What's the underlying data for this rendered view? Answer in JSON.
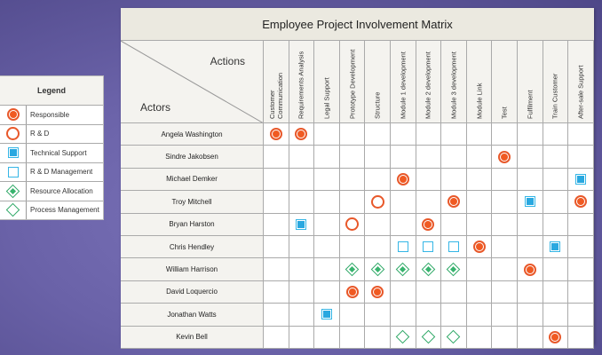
{
  "legend": {
    "title": "Legend",
    "items": [
      {
        "icon": "responsible",
        "label": "Responsible"
      },
      {
        "icon": "rd",
        "label": "R & D"
      },
      {
        "icon": "tech",
        "label": "Technical Support"
      },
      {
        "icon": "rdm",
        "label": "R & D Management"
      },
      {
        "icon": "res",
        "label": "Resource Allocation"
      },
      {
        "icon": "proc",
        "label": "Process Management"
      }
    ]
  },
  "matrix": {
    "title": "Employee Project Involvement Matrix",
    "corner": {
      "actions": "Actions",
      "actors": "Actors"
    },
    "columns": [
      "Customer Communication",
      "Requirements Analysis",
      "Legal Support",
      "Prototype Development",
      "Structure",
      "Module 1 development",
      "Module 2 development",
      "Module 3 development",
      "Module Link",
      "Test",
      "Fulfilment",
      "Train Customer",
      "After-sale Support"
    ],
    "rows": [
      {
        "name": "Angela Washington",
        "cells": {
          "0": "responsible",
          "1": "responsible"
        }
      },
      {
        "name": "Sindre Jakobsen",
        "cells": {
          "9": "responsible"
        }
      },
      {
        "name": "Michael Demker",
        "cells": {
          "5": "responsible",
          "12": "tech"
        }
      },
      {
        "name": "Troy Mitchell",
        "cells": {
          "4": "rd",
          "7": "responsible",
          "10": "tech",
          "12": "responsible"
        }
      },
      {
        "name": "Bryan Harston",
        "cells": {
          "1": "tech",
          "3": "rd",
          "6": "responsible"
        }
      },
      {
        "name": "Chris Hendley",
        "cells": {
          "5": "rdm",
          "6": "rdm",
          "7": "rdm",
          "8": "responsible",
          "11": "tech"
        }
      },
      {
        "name": "William Harrison",
        "cells": {
          "3": "res",
          "4": "res",
          "5": "res",
          "6": "res",
          "7": "res",
          "10": "responsible"
        }
      },
      {
        "name": "David Loquercio",
        "cells": {
          "3": "responsible",
          "4": "responsible"
        }
      },
      {
        "name": "Jonathan Watts",
        "cells": {
          "2": "tech"
        }
      },
      {
        "name": "Kevin Bell",
        "cells": {
          "5": "proc",
          "6": "proc",
          "7": "proc",
          "11": "responsible"
        }
      }
    ]
  },
  "colors": {
    "responsible": "#f05a22",
    "tech_support": "#29a8e0",
    "resource_allocation": "#36b36d",
    "background": "#6a62a8",
    "header_fill": "#ebe9e0"
  }
}
